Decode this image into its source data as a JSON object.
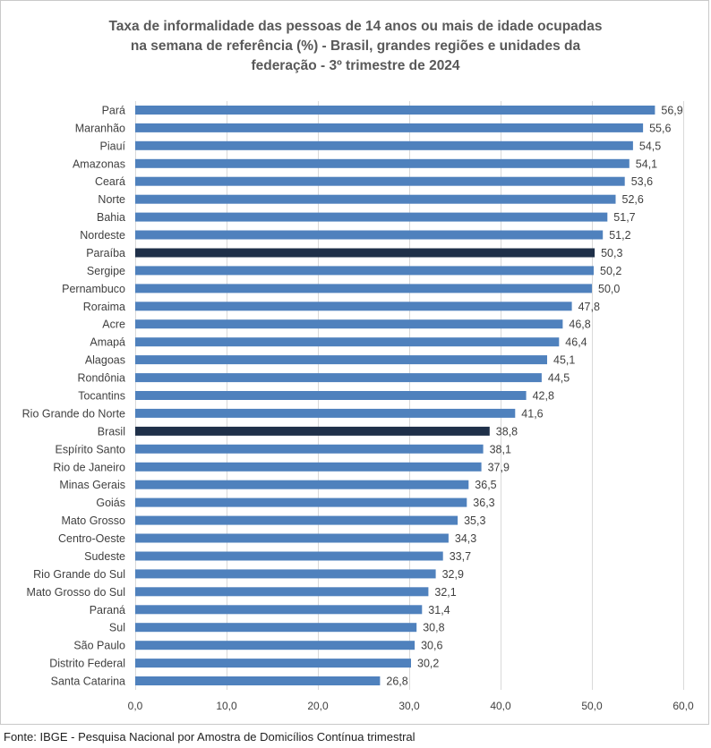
{
  "title_lines": [
    "Taxa de informalidade das pessoas de 14 anos ou mais de idade ocupadas",
    "na semana de referência (%) - Brasil, grandes regiões e unidades da",
    "federação - 3º trimestre de 2024"
  ],
  "source": "Fonte: IBGE - Pesquisa Nacional por Amostra de Domicílios Contínua trimestral",
  "colors": {
    "bar": "#4f81bd",
    "highlight": "#1f3049",
    "grid": "#d9d9d9",
    "text": "#404040"
  },
  "chart_data": {
    "type": "bar",
    "orientation": "horizontal",
    "title": "Taxa de informalidade das pessoas de 14 anos ou mais de idade ocupadas na semana de referência (%) - Brasil, grandes regiões e unidades da federação - 3º trimestre de 2024",
    "categories": [
      "Pará",
      "Maranhão",
      "Piauí",
      "Amazonas",
      "Ceará",
      "Norte",
      "Bahia",
      "Nordeste",
      "Paraíba",
      "Sergipe",
      "Pernambuco",
      "Roraima",
      "Acre",
      "Amapá",
      "Alagoas",
      "Rondônia",
      "Tocantins",
      "Rio Grande do Norte",
      "Brasil",
      "Espírito Santo",
      "Rio de Janeiro",
      "Minas Gerais",
      "Goiás",
      "Mato Grosso",
      "Centro-Oeste",
      "Sudeste",
      "Rio Grande do Sul",
      "Mato Grosso do Sul",
      "Paraná",
      "Sul",
      "São Paulo",
      "Distrito Federal",
      "Santa Catarina"
    ],
    "values": [
      56.9,
      55.6,
      54.5,
      54.1,
      53.6,
      52.6,
      51.7,
      51.2,
      50.3,
      50.2,
      50.0,
      47.8,
      46.8,
      46.4,
      45.1,
      44.5,
      42.8,
      41.6,
      38.8,
      38.1,
      37.9,
      36.5,
      36.3,
      35.3,
      34.3,
      33.7,
      32.9,
      32.1,
      31.4,
      30.8,
      30.6,
      30.2,
      26.8
    ],
    "value_labels": [
      "56,9",
      "55,6",
      "54,5",
      "54,1",
      "53,6",
      "52,6",
      "51,7",
      "51,2",
      "50,3",
      "50,2",
      "50,0",
      "47,8",
      "46,8",
      "46,4",
      "45,1",
      "44,5",
      "42,8",
      "41,6",
      "38,8",
      "38,1",
      "37,9",
      "36,5",
      "36,3",
      "35,3",
      "34,3",
      "33,7",
      "32,9",
      "32,1",
      "31,4",
      "30,8",
      "30,6",
      "30,2",
      "26,8"
    ],
    "highlighted": [
      "Paraíba",
      "Brasil"
    ],
    "xlim": [
      0,
      60
    ],
    "xticks": [
      0,
      10,
      20,
      30,
      40,
      50,
      60
    ],
    "xtick_labels": [
      "0,0",
      "10,0",
      "20,0",
      "30,0",
      "40,0",
      "50,0",
      "60,0"
    ],
    "grid": true,
    "legend": "none"
  }
}
